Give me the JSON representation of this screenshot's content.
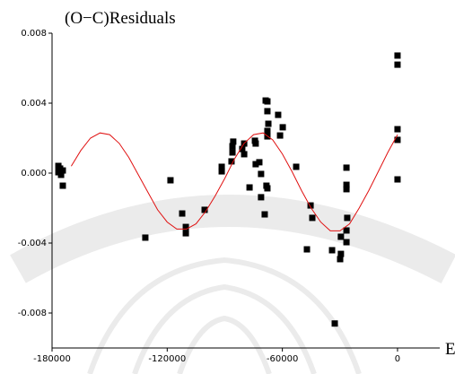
{
  "chart_data": {
    "type": "scatter",
    "title": "(O−C)Residuals",
    "x_label": "E",
    "xlim": [
      -180000,
      22000
    ],
    "ylim": [
      -0.01,
      0.008
    ],
    "xticks": [
      -180000,
      -120000,
      -60000,
      0
    ],
    "yticks": [
      0.008,
      0.004,
      {
        "value": 0,
        "label": "0.000"
      },
      -0.004,
      -0.008
    ],
    "series": [
      {
        "type": "scatter",
        "color": "#000000",
        "x": [
          -176700,
          -176700,
          -175800,
          -175300,
          -174400,
          -174400,
          -118300,
          -131400,
          -112200,
          -110300,
          -110300,
          -100500,
          -91600,
          -91600,
          -86500,
          -86000,
          -86000,
          -85600,
          -79900,
          -79900,
          -80900,
          -77100,
          -74300,
          -73900,
          -73900,
          -72000,
          -71100,
          -71100,
          -69200,
          -68700,
          -67800,
          -67800,
          -67300,
          -67800,
          -67800,
          -68300,
          -67800,
          -62200,
          -59800,
          -61200,
          -52800,
          -47200,
          -45300,
          -44400,
          -34100,
          -32700,
          -29900,
          -29500,
          -29500,
          -26600,
          -26600,
          -26600,
          -26200,
          -26600,
          -26600,
          0,
          0,
          0,
          0,
          0
        ],
        "values": [
          0.00041,
          5e-05,
          0.00026,
          -0.0001,
          0.00015,
          -0.00072,
          -0.00041,
          -0.00369,
          -0.00231,
          -0.00308,
          -0.00344,
          -0.0021,
          0.00036,
          0.0001,
          0.00067,
          0.00118,
          0.00154,
          0.0018,
          0.00108,
          0.00169,
          0.00138,
          -0.00082,
          0.00185,
          0.00169,
          0.00051,
          0.00062,
          -5e-05,
          -0.00138,
          -0.00236,
          0.00415,
          0.0041,
          0.00354,
          0.00282,
          0.00241,
          0.0021,
          -0.00072,
          -0.00087,
          0.00333,
          0.00262,
          0.00215,
          0.00036,
          -0.00436,
          -0.00185,
          -0.00256,
          -0.00441,
          -0.0086,
          -0.00492,
          -0.00462,
          -0.00364,
          0.00031,
          -0.00067,
          -0.00092,
          -0.00256,
          -0.00328,
          -0.00395,
          0.00672,
          0.0062,
          0.00251,
          0.0019,
          -0.00036
        ]
      },
      {
        "type": "line",
        "color": "#e01010",
        "x": [
          -170000,
          -165000,
          -160000,
          -155000,
          -150000,
          -145000,
          -140000,
          -135000,
          -130000,
          -125000,
          -120000,
          -115000,
          -110000,
          -105000,
          -100000,
          -95000,
          -90000,
          -85000,
          -80000,
          -75000,
          -70000,
          -65000,
          -60000,
          -55000,
          -50000,
          -45000,
          -40000,
          -35000,
          -30000,
          -25000,
          -20000,
          -15000,
          -10000,
          -5000,
          0
        ],
        "values": [
          0.0004,
          0.0013,
          0.002,
          0.0023,
          0.0022,
          0.0017,
          0.0009,
          -0.0001,
          -0.0011,
          -0.0021,
          -0.0028,
          -0.0032,
          -0.0032,
          -0.0029,
          -0.0022,
          -0.0013,
          -0.0003,
          0.0008,
          0.0017,
          0.0022,
          0.0023,
          0.0019,
          0.0011,
          0.0001,
          -0.001,
          -0.002,
          -0.0028,
          -0.0033,
          -0.0033,
          -0.0029,
          -0.002,
          -0.001,
          0.0001,
          0.0012,
          0.0022
        ]
      }
    ]
  }
}
